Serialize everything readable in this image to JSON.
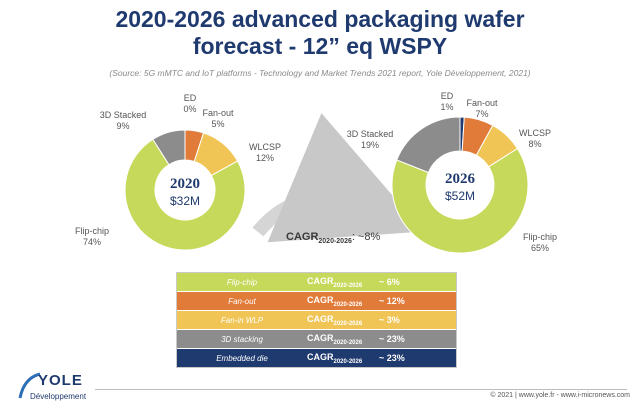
{
  "title_line1": "2020-2026 advanced packaging wafer",
  "title_line2": "forecast - 12” eq WSPY",
  "source": "(Source: 5G mMTC and IoT platforms - Technology and Market Trends 2021 report, Yole Développement, 2021)",
  "chart_data": [
    {
      "type": "pie",
      "center_year": "2020",
      "center_value": "$32M",
      "slices": [
        {
          "name": "ED",
          "value": 0,
          "label": "0%",
          "color": "#1f3a6e"
        },
        {
          "name": "Fan-out",
          "value": 5,
          "label": "5%",
          "color": "#e07b3a"
        },
        {
          "name": "WLCSP",
          "value": 12,
          "label": "12%",
          "color": "#f0c555"
        },
        {
          "name": "Flip-chip",
          "value": 74,
          "label": "74%",
          "color": "#c7d95a"
        },
        {
          "name": "3D Stacked",
          "value": 9,
          "label": "9%",
          "color": "#8c8c8c"
        }
      ]
    },
    {
      "type": "pie",
      "center_year": "2026",
      "center_value": "$52M",
      "slices": [
        {
          "name": "ED",
          "value": 1,
          "label": "1%",
          "color": "#1f3a6e"
        },
        {
          "name": "Fan-out",
          "value": 7,
          "label": "7%",
          "color": "#e07b3a"
        },
        {
          "name": "WLCSP",
          "value": 8,
          "label": "8%",
          "color": "#f0c555"
        },
        {
          "name": "Flip-chip",
          "value": 65,
          "label": "65%",
          "color": "#c7d95a"
        },
        {
          "name": "3D Stacked",
          "value": 19,
          "label": "19%",
          "color": "#8c8c8c"
        }
      ]
    }
  ],
  "overall_cagr": {
    "label": "CAGR",
    "sub": "2020-2026",
    "value": ": ~8%"
  },
  "cagr_table": [
    {
      "name": "Flip-chip",
      "cagr": "CAGR",
      "sub": "2020-2026",
      "value": "~ 6%",
      "color": "#c7d95a"
    },
    {
      "name": "Fan-out",
      "cagr": "CAGR",
      "sub": "2020-2026",
      "value": "~ 12%",
      "color": "#e07b3a"
    },
    {
      "name": "Fan-in WLP",
      "cagr": "CAGR",
      "sub": "2020-2026",
      "value": "~ 3%",
      "color": "#f0c555"
    },
    {
      "name": "3D stacking",
      "cagr": "CAGR",
      "sub": "2020-2026",
      "value": "~ 23%",
      "color": "#8c8c8c"
    },
    {
      "name": "Embedded die",
      "cagr": "CAGR",
      "sub": "2020-2026",
      "value": "~ 23%",
      "color": "#1f3a6e"
    }
  ],
  "logo": {
    "name": "YOLE",
    "sub": "Développement"
  },
  "footer": "© 2021 | www.yole.fr - www.i-micronews.com"
}
